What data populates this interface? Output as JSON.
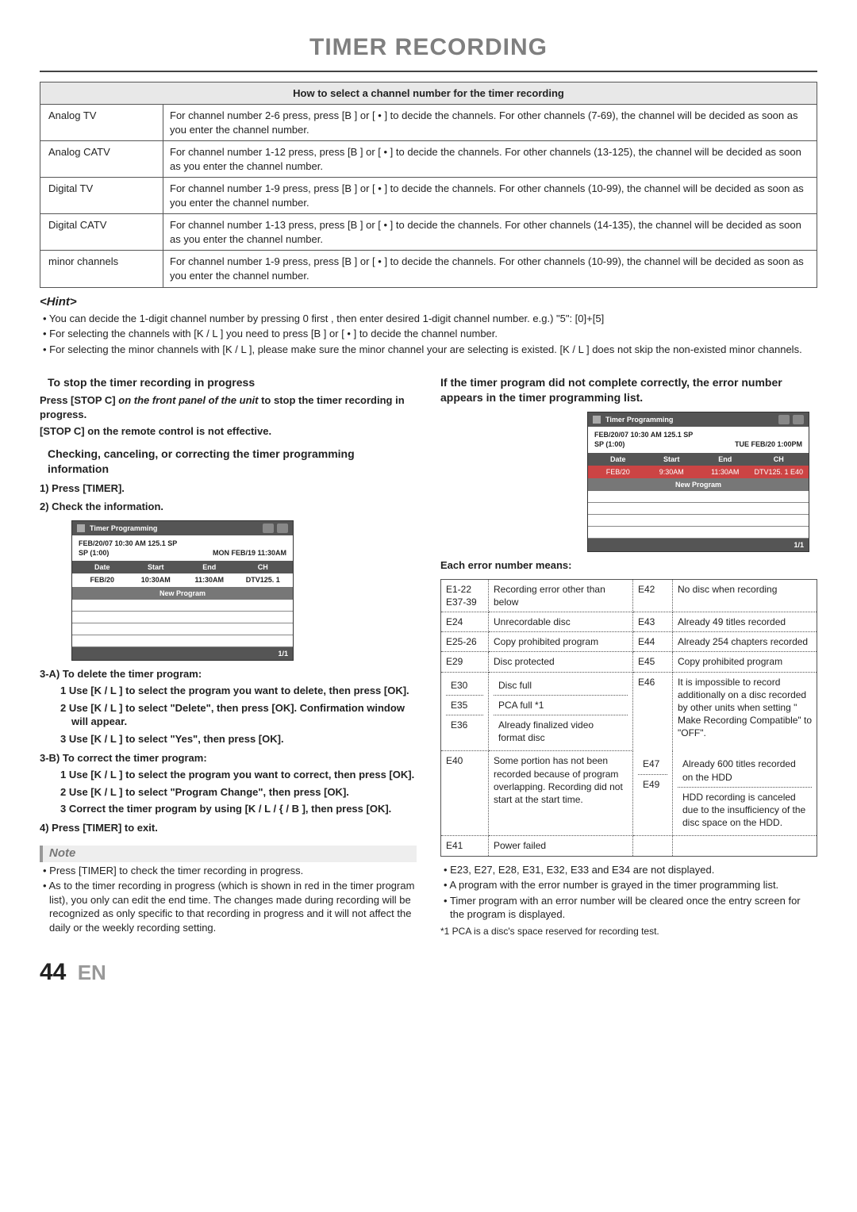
{
  "title": "TIMER RECORDING",
  "channel_table": {
    "header": "How to select a channel number for the timer recording",
    "rows": [
      {
        "label": "Analog TV",
        "desc": "For channel number 2-6 press, press [B ] or [ • ] to decide the channels. For other channels (7-69), the channel will be decided as soon as you enter the channel number."
      },
      {
        "label": "Analog CATV",
        "desc": "For channel number 1-12 press, press [B ] or [ • ] to decide the channels. For other channels (13-125), the channel will be decided as soon as you enter the channel number."
      },
      {
        "label": "Digital TV",
        "desc": "For channel number 1-9 press, press [B ] or [ • ] to decide the channels. For other channels (10-99), the channel will be decided as soon as you enter the channel number."
      },
      {
        "label": "Digital CATV",
        "desc": "For channel number 1-13 press, press [B ] or [ • ] to decide the channels. For other channels (14-135), the channel will be decided as soon as you enter the channel number."
      },
      {
        "label": "minor channels",
        "desc": "For channel number 1-9 press, press [B ] or [ • ] to decide the channels. For other channels (10-99), the channel will be decided as soon as you enter the channel number."
      }
    ]
  },
  "hint": {
    "title": "<Hint>",
    "lines": [
      "You can decide the 1-digit channel number by pressing 0 first , then enter desired 1-digit channel number. e.g.) \"5\": [0]+[5]",
      "For selecting the channels with [K / L ] you need to press [B ] or [ • ] to decide the channel number.",
      "For selecting the minor channels with [K / L ], please make sure the minor channel your are selecting is existed. [K / L ] does not skip the non-existed minor channels."
    ]
  },
  "left": {
    "stop_head": "To stop the timer recording in progress",
    "stop_1": "Press [STOP C] on the front panel of the unit to stop the timer recording in progress.",
    "stop_2": "[STOP C] on the remote control is not effective.",
    "check_head": "Checking, canceling, or correcting the timer programming information",
    "s1": "1) Press [TIMER].",
    "s2": "2) Check the information.",
    "prog": {
      "title": "Timer Programming",
      "line1": "FEB/20/07  10:30 AM 125.1 SP",
      "line2a": "SP  (1:00)",
      "line2b": "MON FEB/19 11:30AM",
      "cols": [
        "Date",
        "Start",
        "End",
        "CH"
      ],
      "row": [
        "FEB/20",
        "10:30AM",
        "11:30AM",
        "DTV125. 1"
      ],
      "np": "New Program",
      "foot": "1/1"
    },
    "s3a": "3-A) To delete the timer program:",
    "s3a1": "1 Use [K / L ] to select the program you want to delete, then press [OK].",
    "s3a2": "2 Use [K / L ] to select \"Delete\", then press [OK]. Confirmation window will appear.",
    "s3a3": "3 Use [K / L ] to select \"Yes\", then press [OK].",
    "s3b": "3-B) To correct the timer program:",
    "s3b1": "1 Use [K / L ] to select the program you want to correct, then press [OK].",
    "s3b2": "2 Use [K / L ] to select \"Program Change\", then press [OK].",
    "s3b3": "3 Correct the timer program by using [K / L / { / B ], then press [OK].",
    "s4": "4) Press [TIMER] to exit.",
    "note_head": "Note",
    "note1": "Press [TIMER] to check the timer recording in progress.",
    "note2": "As to the timer recording in progress (which is shown in red in the timer program list), you only can edit the end time. The changes made during recording will be recognized as only specific to that recording in progress and it will not affect the daily or the weekly recording setting."
  },
  "right": {
    "head": "If the timer program did not complete correctly, the error number appears in the timer programming list.",
    "prog": {
      "title": "Timer Programming",
      "line1": "FEB/20/07  10:30 AM 125.1 SP",
      "line2a": "SP  (1:00)",
      "line2b": "TUE FEB/20  1:00PM",
      "cols": [
        "Date",
        "Start",
        "End",
        "CH"
      ],
      "np": "New Program",
      "foot": "1/1"
    },
    "each": "Each error number means:",
    "errors": [
      {
        "c1": "E1-22 E37-39",
        "d1": "Recording error other than below",
        "c2": "E42",
        "d2": "No disc when recording"
      },
      {
        "c1": "E24",
        "d1": "Unrecordable disc",
        "c2": "E43",
        "d2": "Already 49 titles recorded"
      },
      {
        "c1": "E25-26",
        "d1": "Copy prohibited program",
        "c2": "E44",
        "d2": "Already 254 chapters recorded"
      },
      {
        "c1": "E29",
        "d1": "Disc protected",
        "c2": "E45",
        "d2": "Copy prohibited program"
      },
      {
        "c1": "E30",
        "d1": "Disc full",
        "c2": "E46",
        "d2": "It is impossible to record additionally on a disc recorded by other units when setting \" Make Recording Compatible\" to \"OFF\"."
      },
      {
        "c1": "E35",
        "d1": "PCA full *1",
        "c2": "",
        "d2": ""
      },
      {
        "c1": "E36",
        "d1": "Already finalized video format disc",
        "c2": "",
        "d2": ""
      },
      {
        "c1": "E40",
        "d1": "Some portion has not been recorded because of program overlapping. Recording did not start at the start time.",
        "c2": "E47",
        "d2": "Already 600 titles recorded on the HDD"
      },
      {
        "c1": "",
        "d1": "",
        "c2": "E49",
        "d2": "HDD recording is canceled due to the insufficiency of the disc space on the HDD."
      },
      {
        "c1": "E41",
        "d1": "Power failed",
        "c2": "",
        "d2": ""
      }
    ],
    "tail1": "E23, E27, E28, E31, E32, E33 and E34 are not displayed.",
    "tail2": "A program with the error number is grayed in the timer programming list.",
    "tail3": "Timer program with an error number will be cleared once the entry screen for the program is displayed.",
    "tail4": "*1 PCA is a disc's space reserved for recording test."
  },
  "page_num": "44",
  "page_lang": "EN"
}
